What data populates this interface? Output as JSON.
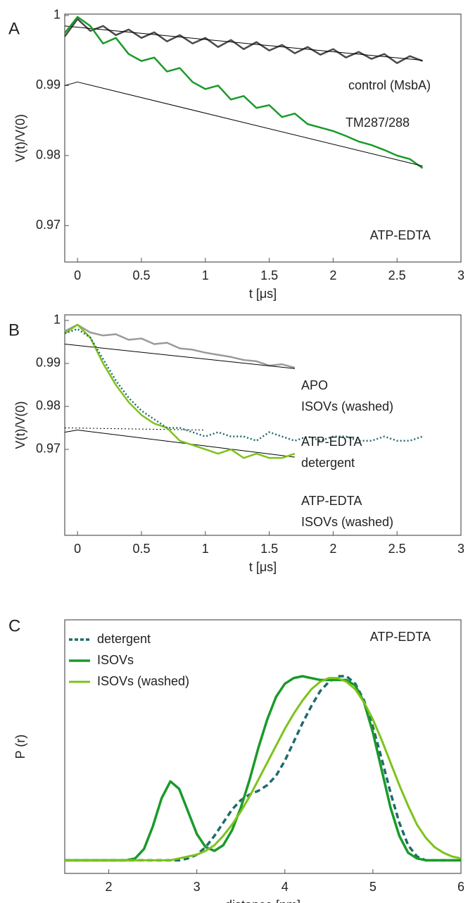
{
  "chart_data": [
    {
      "type": "line",
      "panel": "A",
      "xlabel": "t [μs]",
      "ylabel": "V(t)/V(0)",
      "xlim": [
        -0.1,
        3
      ],
      "ylim": [
        0.9648,
        1.0002
      ],
      "xticks": [
        0,
        0.5,
        1,
        1.5,
        2,
        2.5,
        3
      ],
      "yticks": [
        0.97,
        0.98,
        0.99,
        1
      ],
      "annotations": [
        "ATP-EDTA"
      ],
      "series": [
        {
          "label": [
            "control (MsbA)"
          ],
          "color": "#4a4a4a",
          "width": 2.5,
          "x": [
            -0.1,
            0,
            0.1,
            0.2,
            0.3,
            0.4,
            0.5,
            0.6,
            0.7,
            0.8,
            0.9,
            1,
            1.1,
            1.2,
            1.3,
            1.4,
            1.5,
            1.6,
            1.7,
            1.8,
            1.9,
            2,
            2.1,
            2.2,
            2.3,
            2.4,
            2.5,
            2.6,
            2.7
          ],
          "values": [
            0.997,
            0.9995,
            0.9978,
            0.9985,
            0.9972,
            0.998,
            0.9968,
            0.9976,
            0.9963,
            0.9972,
            0.996,
            0.9968,
            0.9955,
            0.9965,
            0.9952,
            0.9962,
            0.995,
            0.9958,
            0.9946,
            0.9955,
            0.9944,
            0.9952,
            0.994,
            0.9948,
            0.9938,
            0.9945,
            0.9932,
            0.9942,
            0.9935
          ]
        },
        {
          "color": "#000000",
          "width": 1,
          "x": [
            -0.1,
            2.7
          ],
          "values": [
            0.9985,
            0.9936
          ]
        },
        {
          "label": [
            "TM287/288"
          ],
          "color": "#1a9a2a",
          "width": 2.5,
          "x": [
            -0.1,
            0,
            0.1,
            0.2,
            0.3,
            0.4,
            0.5,
            0.6,
            0.7,
            0.8,
            0.9,
            1,
            1.1,
            1.2,
            1.3,
            1.4,
            1.5,
            1.6,
            1.7,
            1.8,
            1.9,
            2,
            2.1,
            2.2,
            2.3,
            2.4,
            2.5,
            2.6,
            2.7
          ],
          "values": [
            0.9975,
            0.9998,
            0.9985,
            0.996,
            0.9968,
            0.9945,
            0.9935,
            0.994,
            0.992,
            0.9925,
            0.9905,
            0.9895,
            0.99,
            0.988,
            0.9885,
            0.9868,
            0.9872,
            0.9855,
            0.986,
            0.9845,
            0.984,
            0.9835,
            0.9828,
            0.982,
            0.9815,
            0.9808,
            0.98,
            0.9795,
            0.9782
          ]
        },
        {
          "color": "#000000",
          "width": 1,
          "x": [
            -0.1,
            0,
            2.7
          ],
          "values": [
            0.99,
            0.9905,
            0.9785
          ]
        }
      ]
    },
    {
      "type": "line",
      "panel": "B",
      "xlabel": "t [μs]",
      "ylabel": "V(t)/V(0)",
      "xlim": [
        -0.1,
        3
      ],
      "ylim": [
        0.95,
        1.0013
      ],
      "xticks": [
        0,
        0.5,
        1,
        1.5,
        2,
        2.5,
        3
      ],
      "yticks": [
        0.97,
        0.98,
        0.99,
        1
      ],
      "annotations": [],
      "series": [
        {
          "label": [
            "APO",
            "ISOVs (washed)"
          ],
          "color": "#9a9a9a",
          "width": 2.5,
          "x": [
            -0.1,
            0,
            0.1,
            0.2,
            0.3,
            0.4,
            0.5,
            0.6,
            0.7,
            0.8,
            0.9,
            1,
            1.1,
            1.2,
            1.3,
            1.4,
            1.5,
            1.6,
            1.7
          ],
          "values": [
            0.9975,
            0.999,
            0.9972,
            0.9965,
            0.9968,
            0.9955,
            0.9958,
            0.9945,
            0.9948,
            0.9935,
            0.9932,
            0.9925,
            0.992,
            0.9915,
            0.9908,
            0.9905,
            0.9895,
            0.9898,
            0.989
          ]
        },
        {
          "color": "#000000",
          "width": 1,
          "x": [
            -0.1,
            1.7
          ],
          "values": [
            0.9945,
            0.9888
          ]
        },
        {
          "color": "#000000",
          "width": 1,
          "dash": "dotted",
          "x": [
            -0.1,
            1.0
          ],
          "values": [
            0.975,
            0.9745
          ]
        },
        {
          "color": "#000000",
          "width": 1,
          "x": [
            -0.1,
            0,
            1.7
          ],
          "values": [
            0.974,
            0.9745,
            0.9682
          ]
        },
        {
          "label": [
            "ATP-EDTA",
            "ISOVs (washed)"
          ],
          "color": "#7dc31a",
          "width": 2.5,
          "x": [
            -0.1,
            0,
            0.1,
            0.2,
            0.3,
            0.4,
            0.5,
            0.6,
            0.7,
            0.8,
            0.9,
            1,
            1.1,
            1.2,
            1.3,
            1.4,
            1.5,
            1.6,
            1.7
          ],
          "values": [
            0.997,
            0.999,
            0.996,
            0.99,
            0.985,
            0.981,
            0.978,
            0.976,
            0.975,
            0.972,
            0.971,
            0.97,
            0.969,
            0.97,
            0.968,
            0.969,
            0.968,
            0.968,
            0.969
          ]
        },
        {
          "label": [
            "ATP-EDTA",
            "detergent"
          ],
          "color": "#1f6b6b",
          "width": 2.5,
          "dash": "dotted",
          "x": [
            -0.1,
            0,
            0.1,
            0.2,
            0.3,
            0.4,
            0.5,
            0.6,
            0.7,
            0.8,
            0.9,
            1,
            1.1,
            1.2,
            1.3,
            1.4,
            1.5,
            1.6,
            1.7,
            1.8,
            1.9,
            2,
            2.1,
            2.2,
            2.3,
            2.4,
            2.5,
            2.6,
            2.7
          ],
          "values": [
            0.997,
            0.998,
            0.996,
            0.991,
            0.986,
            0.982,
            0.979,
            0.977,
            0.975,
            0.975,
            0.974,
            0.973,
            0.974,
            0.973,
            0.973,
            0.972,
            0.974,
            0.973,
            0.972,
            0.973,
            0.972,
            0.973,
            0.973,
            0.972,
            0.972,
            0.973,
            0.972,
            0.972,
            0.973
          ]
        }
      ]
    },
    {
      "type": "line",
      "panel": "C",
      "xlabel": "distance [nm]",
      "ylabel": "P (r)",
      "xlim": [
        1.5,
        6
      ],
      "ylim": [
        -0.07,
        1.28
      ],
      "xticks": [
        2,
        3,
        4,
        5,
        6
      ],
      "yticks": [],
      "legend": true,
      "annotations": [
        "ATP-EDTA"
      ],
      "x": [
        1.5,
        1.6,
        1.7,
        1.8,
        1.9,
        2,
        2.1,
        2.2,
        2.3,
        2.4,
        2.5,
        2.6,
        2.7,
        2.8,
        2.9,
        3,
        3.1,
        3.2,
        3.3,
        3.4,
        3.5,
        3.6,
        3.7,
        3.8,
        3.9,
        4,
        4.1,
        4.2,
        4.3,
        4.4,
        4.5,
        4.6,
        4.7,
        4.8,
        4.9,
        5,
        5.1,
        5.2,
        5.3,
        5.4,
        5.5,
        5.6,
        5.7,
        5.8,
        5.9,
        6
      ],
      "series": [
        {
          "name": "detergent",
          "color": "#1f6b6b",
          "width": 3.5,
          "dash": "dashed",
          "values": [
            0,
            0,
            0,
            0,
            0,
            0,
            0,
            0,
            0,
            0,
            0,
            0,
            0,
            0,
            0.01,
            0.03,
            0.07,
            0.13,
            0.2,
            0.27,
            0.32,
            0.35,
            0.37,
            0.4,
            0.45,
            0.53,
            0.63,
            0.73,
            0.82,
            0.9,
            0.95,
            0.98,
            0.98,
            0.94,
            0.85,
            0.71,
            0.54,
            0.36,
            0.2,
            0.08,
            0.02,
            0,
            0,
            0,
            0,
            0
          ]
        },
        {
          "name": "ISOVs",
          "color": "#1a9a2a",
          "width": 3.5,
          "values": [
            0,
            0,
            0,
            0,
            0,
            0,
            0,
            0,
            0.01,
            0.06,
            0.18,
            0.33,
            0.42,
            0.38,
            0.26,
            0.14,
            0.07,
            0.05,
            0.08,
            0.16,
            0.28,
            0.43,
            0.6,
            0.75,
            0.87,
            0.94,
            0.97,
            0.98,
            0.97,
            0.96,
            0.96,
            0.96,
            0.96,
            0.93,
            0.84,
            0.68,
            0.48,
            0.28,
            0.13,
            0.04,
            0.01,
            0,
            0,
            0,
            0,
            0
          ]
        },
        {
          "name": "ISOVs (washed)",
          "color": "#7dc31a",
          "width": 3,
          "values": [
            0,
            0,
            0,
            0,
            0,
            0,
            0,
            0,
            0,
            0,
            0,
            0,
            0,
            0.01,
            0.02,
            0.03,
            0.05,
            0.08,
            0.13,
            0.19,
            0.26,
            0.34,
            0.43,
            0.52,
            0.61,
            0.7,
            0.78,
            0.85,
            0.91,
            0.95,
            0.97,
            0.97,
            0.95,
            0.91,
            0.84,
            0.75,
            0.64,
            0.52,
            0.4,
            0.29,
            0.19,
            0.12,
            0.07,
            0.04,
            0.02,
            0.01
          ]
        }
      ]
    }
  ]
}
